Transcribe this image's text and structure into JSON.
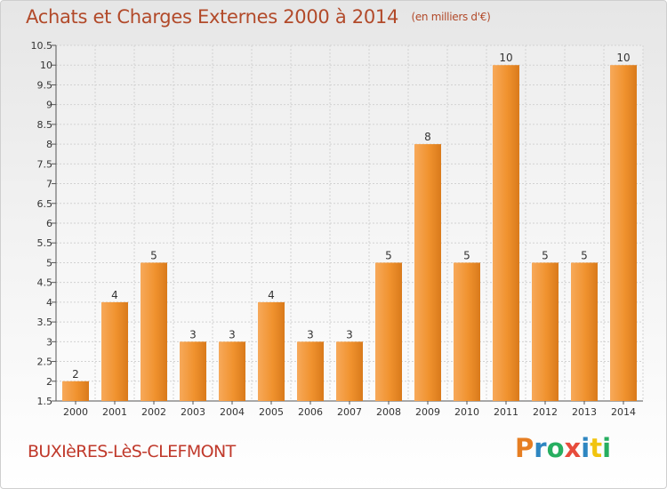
{
  "header": {
    "title": "Achats et Charges Externes 2000 à 2014",
    "unit": "(en milliers d'€)"
  },
  "footer": {
    "commune": "BUXIèRES-LèS-CLEFMONT",
    "logo_letters": [
      "P",
      "r",
      "o",
      "x",
      "i",
      "t",
      "i"
    ],
    "logo_colors": [
      "#e67e22",
      "#2e86c1",
      "#27ae60",
      "#e74c3c",
      "#2e86c1",
      "#f1c40f",
      "#27ae60"
    ]
  },
  "colors": {
    "bar": "#f0922e",
    "bar_light": "#f7a95a",
    "bar_dark": "#d97a1b",
    "title": "#b24a2a",
    "commune": "#c0392b"
  },
  "chart_data": {
    "type": "bar",
    "title": "Achats et Charges Externes 2000 à 2014",
    "subtitle": "(en milliers d'€)",
    "categories": [
      "2000",
      "2001",
      "2002",
      "2003",
      "2004",
      "2005",
      "2006",
      "2007",
      "2008",
      "2009",
      "2010",
      "2011",
      "2012",
      "2013",
      "2014"
    ],
    "values": [
      2,
      4,
      5,
      3,
      3,
      4,
      3,
      3,
      5,
      8,
      5,
      10,
      5,
      5,
      10
    ],
    "data_labels": [
      "2",
      "4",
      "5",
      "3",
      "3",
      "4",
      "3",
      "3",
      "5",
      "8",
      "5",
      "10",
      "5",
      "5",
      "10"
    ],
    "ylim": [
      1.5,
      10.5
    ],
    "yticks": [
      1.5,
      2,
      2.5,
      3,
      3.5,
      4,
      4.5,
      5,
      5.5,
      6,
      6.5,
      7,
      7.5,
      8,
      8.5,
      9,
      9.5,
      10,
      10.5
    ],
    "ytick_labels": [
      "1.5",
      "2",
      "2.5",
      "3",
      "3.5",
      "4",
      "4.5",
      "5",
      "5.5",
      "6",
      "6.5",
      "7",
      "7.5",
      "8",
      "8.5",
      "9",
      "9.5",
      "10",
      "10.5"
    ],
    "grid": true,
    "xlabel": "",
    "ylabel": ""
  }
}
